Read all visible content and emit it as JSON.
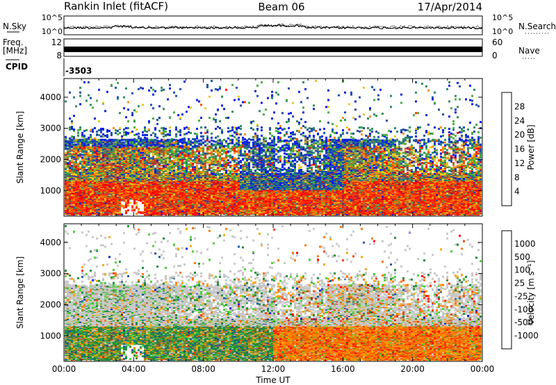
{
  "header": {
    "station": "Rankin Inlet (fitACF)",
    "beam": "Beam 06",
    "date": "17/Apr/2014"
  },
  "noise_panel": {
    "left_label": "N.Sky",
    "right_label": "N.Search",
    "left_ticks": [
      "10^5",
      "10^0"
    ],
    "right_ticks": [
      "10^5",
      "10^0"
    ]
  },
  "freq_panel": {
    "left_label_1": "Freq.",
    "left_label_2": "[MHz]",
    "left_ticks": [
      "12",
      "8"
    ],
    "right_label": "Nave",
    "right_ticks": [
      "60",
      "0"
    ]
  },
  "cpid_panel": {
    "label": "CPID",
    "value": "-3503"
  },
  "colors": {
    "power_scale": [
      "#0a1ee6",
      "#1b4faa",
      "#2f8a5e",
      "#49ad3e",
      "#e6c81e",
      "#ff8c00",
      "#ff4500",
      "#ff0000"
    ],
    "velocity_scale": [
      "#ff0000",
      "#ff3c00",
      "#ff7800",
      "#ffa500",
      "#c8c8c8",
      "#4fcf3a",
      "#1e8c3c",
      "#1e5aa0",
      "#0a1ee6"
    ]
  },
  "chart_data": [
    {
      "type": "heatmap",
      "name": "power",
      "xlabel": "",
      "ylabel": "Slant Range [km]",
      "x_ticks": [
        "00:00",
        "04:00",
        "08:00",
        "12:00",
        "16:00",
        "20:00",
        "00:00"
      ],
      "y_ticks": [
        1000,
        2000,
        3000,
        4000
      ],
      "ylim": [
        180,
        4600
      ],
      "colorbar": {
        "label": "Power [dB]",
        "ticks": [
          "4",
          "8",
          "12",
          "16",
          "20",
          "24",
          "28"
        ]
      }
    },
    {
      "type": "heatmap",
      "name": "velocity",
      "xlabel": "Time UT",
      "ylabel": "Slant Range [km]",
      "x_ticks": [
        "00:00",
        "04:00",
        "08:00",
        "12:00",
        "16:00",
        "20:00",
        "00:00"
      ],
      "y_ticks": [
        1000,
        2000,
        3000,
        4000
      ],
      "ylim": [
        180,
        4600
      ],
      "colorbar": {
        "label": "Velocity [m s⁻¹]",
        "ticks": [
          "1000",
          "500",
          "100",
          "25",
          "-25",
          "-100",
          "-500",
          "-1000"
        ]
      }
    }
  ]
}
